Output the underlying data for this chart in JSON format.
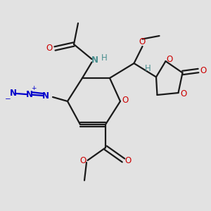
{
  "bg_color": "#e2e2e2",
  "bond_color": "#1a1a1a",
  "oxygen_color": "#cc0000",
  "nitrogen_color": "#0000cc",
  "nh_color": "#4a8f8f",
  "h_color": "#4a8f8f",
  "figsize": [
    3.0,
    3.0
  ],
  "dpi": 100,
  "xlim": [
    0,
    10
  ],
  "ylim": [
    0,
    10
  ],
  "lw": 1.6,
  "fs": 8.5
}
